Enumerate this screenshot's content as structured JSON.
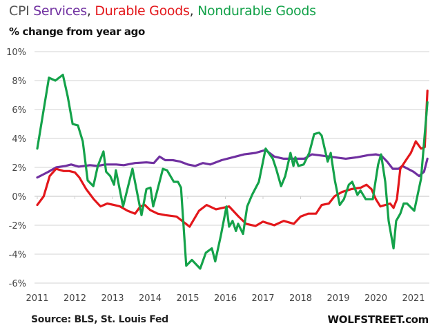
{
  "chart_data": {
    "type": "line",
    "title_parts": [
      {
        "text": "CPI ",
        "color": "#555555"
      },
      {
        "text": "Services",
        "color": "#7030a0"
      },
      {
        "text": ", ",
        "color": "#333333"
      },
      {
        "text": "Durable Goods",
        "color": "#e3171b"
      },
      {
        "text": ", ",
        "color": "#333333"
      },
      {
        "text": "Nondurable Goods",
        "color": "#14a24a"
      }
    ],
    "title": "CPI Services, Durable Goods, Nondurable Goods",
    "subtitle": "% change from year ago",
    "xlabel": "",
    "ylabel": "",
    "xlim": [
      2011,
      2021.55
    ],
    "ylim": [
      -6,
      10
    ],
    "yticks": [
      10,
      8,
      6,
      4,
      2,
      0,
      -2,
      -4,
      -6
    ],
    "ytick_labels": [
      "10%",
      "8%",
      "6%",
      "4%",
      "2%",
      "0%",
      "-2%",
      "-4%",
      "-6%"
    ],
    "xticks": [
      2011,
      2012,
      2013,
      2014,
      2015,
      2016,
      2017,
      2018,
      2019,
      2020,
      2021
    ],
    "xtick_labels": [
      "2011",
      "2012",
      "2013",
      "2014",
      "2015",
      "2016",
      "2017",
      "2018",
      "2019",
      "2020",
      "2021"
    ],
    "grid": true,
    "source": "Source: BLS, St. Louis Fed",
    "brand": "WOLFSTREET.com",
    "series": [
      {
        "name": "Services",
        "color": "#7030a0",
        "points": [
          [
            2011.0,
            1.3
          ],
          [
            2011.15,
            1.5
          ],
          [
            2011.3,
            1.7
          ],
          [
            2011.5,
            2.0
          ],
          [
            2011.75,
            2.1
          ],
          [
            2011.9,
            2.2
          ],
          [
            2012.1,
            2.05
          ],
          [
            2012.4,
            2.15
          ],
          [
            2012.6,
            2.1
          ],
          [
            2012.8,
            2.2
          ],
          [
            2013.1,
            2.2
          ],
          [
            2013.3,
            2.15
          ],
          [
            2013.6,
            2.3
          ],
          [
            2013.9,
            2.35
          ],
          [
            2014.1,
            2.3
          ],
          [
            2014.25,
            2.75
          ],
          [
            2014.4,
            2.5
          ],
          [
            2014.6,
            2.5
          ],
          [
            2014.8,
            2.4
          ],
          [
            2015.0,
            2.2
          ],
          [
            2015.2,
            2.1
          ],
          [
            2015.4,
            2.3
          ],
          [
            2015.6,
            2.2
          ],
          [
            2015.9,
            2.5
          ],
          [
            2016.2,
            2.7
          ],
          [
            2016.5,
            2.9
          ],
          [
            2016.8,
            3.0
          ],
          [
            2017.07,
            3.2
          ],
          [
            2017.3,
            2.75
          ],
          [
            2017.55,
            2.6
          ],
          [
            2017.9,
            2.6
          ],
          [
            2018.1,
            2.6
          ],
          [
            2018.3,
            2.9
          ],
          [
            2018.6,
            2.8
          ],
          [
            2018.9,
            2.7
          ],
          [
            2019.2,
            2.6
          ],
          [
            2019.5,
            2.7
          ],
          [
            2019.8,
            2.85
          ],
          [
            2020.0,
            2.9
          ],
          [
            2020.15,
            2.8
          ],
          [
            2020.3,
            2.4
          ],
          [
            2020.45,
            1.9
          ],
          [
            2020.6,
            1.9
          ],
          [
            2020.7,
            2.1
          ],
          [
            2020.85,
            1.9
          ],
          [
            2021.0,
            1.7
          ],
          [
            2021.15,
            1.4
          ],
          [
            2021.28,
            1.7
          ],
          [
            2021.37,
            2.6
          ]
        ]
      },
      {
        "name": "Durable Goods",
        "color": "#e3171b",
        "points": [
          [
            2011.0,
            -0.6
          ],
          [
            2011.17,
            0.0
          ],
          [
            2011.33,
            1.4
          ],
          [
            2011.5,
            1.9
          ],
          [
            2011.7,
            1.75
          ],
          [
            2011.85,
            1.75
          ],
          [
            2012.0,
            1.65
          ],
          [
            2012.12,
            1.3
          ],
          [
            2012.3,
            0.5
          ],
          [
            2012.5,
            -0.2
          ],
          [
            2012.68,
            -0.7
          ],
          [
            2012.86,
            -0.5
          ],
          [
            2013.04,
            -0.6
          ],
          [
            2013.2,
            -0.7
          ],
          [
            2013.4,
            -1.0
          ],
          [
            2013.6,
            -1.2
          ],
          [
            2013.74,
            -0.7
          ],
          [
            2013.86,
            -0.6
          ],
          [
            2014.0,
            -0.95
          ],
          [
            2014.2,
            -1.2
          ],
          [
            2014.4,
            -1.3
          ],
          [
            2014.7,
            -1.4
          ],
          [
            2014.95,
            -1.9
          ],
          [
            2015.05,
            -2.1
          ],
          [
            2015.3,
            -1.0
          ],
          [
            2015.5,
            -0.6
          ],
          [
            2015.75,
            -0.9
          ],
          [
            2016.1,
            -0.7
          ],
          [
            2016.35,
            -1.4
          ],
          [
            2016.55,
            -1.9
          ],
          [
            2016.8,
            -2.05
          ],
          [
            2017.0,
            -1.75
          ],
          [
            2017.3,
            -2.0
          ],
          [
            2017.55,
            -1.7
          ],
          [
            2017.82,
            -1.9
          ],
          [
            2018.0,
            -1.4
          ],
          [
            2018.2,
            -1.2
          ],
          [
            2018.41,
            -1.2
          ],
          [
            2018.56,
            -0.6
          ],
          [
            2018.75,
            -0.5
          ],
          [
            2018.9,
            0.0
          ],
          [
            2019.1,
            0.3
          ],
          [
            2019.35,
            0.5
          ],
          [
            2019.6,
            0.6
          ],
          [
            2019.75,
            0.8
          ],
          [
            2019.88,
            0.5
          ],
          [
            2020.0,
            -0.2
          ],
          [
            2020.12,
            -0.7
          ],
          [
            2020.25,
            -0.6
          ],
          [
            2020.38,
            -0.5
          ],
          [
            2020.47,
            -0.8
          ],
          [
            2020.56,
            -0.2
          ],
          [
            2020.65,
            1.9
          ],
          [
            2020.8,
            2.5
          ],
          [
            2020.93,
            3.0
          ],
          [
            2021.06,
            3.8
          ],
          [
            2021.2,
            3.3
          ],
          [
            2021.3,
            3.4
          ],
          [
            2021.37,
            7.3
          ]
        ]
      },
      {
        "name": "Nondurable Goods",
        "color": "#14a24a",
        "points": [
          [
            2011.0,
            3.3
          ],
          [
            2011.31,
            8.2
          ],
          [
            2011.48,
            8.0
          ],
          [
            2011.68,
            8.4
          ],
          [
            2011.81,
            6.9
          ],
          [
            2011.94,
            5.0
          ],
          [
            2012.08,
            4.9
          ],
          [
            2012.21,
            3.8
          ],
          [
            2012.34,
            1.1
          ],
          [
            2012.49,
            0.7
          ],
          [
            2012.61,
            2.1
          ],
          [
            2012.76,
            3.1
          ],
          [
            2012.83,
            1.7
          ],
          [
            2012.94,
            1.4
          ],
          [
            2013.04,
            0.8
          ],
          [
            2013.09,
            1.8
          ],
          [
            2013.28,
            -0.7
          ],
          [
            2013.53,
            1.9
          ],
          [
            2013.77,
            -1.3
          ],
          [
            2013.9,
            0.5
          ],
          [
            2014.01,
            0.6
          ],
          [
            2014.08,
            -0.7
          ],
          [
            2014.34,
            1.9
          ],
          [
            2014.45,
            1.8
          ],
          [
            2014.63,
            1.0
          ],
          [
            2014.74,
            1.0
          ],
          [
            2014.82,
            0.6
          ],
          [
            2014.96,
            -4.8
          ],
          [
            2015.11,
            -4.4
          ],
          [
            2015.33,
            -5.0
          ],
          [
            2015.48,
            -3.9
          ],
          [
            2015.64,
            -3.6
          ],
          [
            2015.73,
            -4.5
          ],
          [
            2015.88,
            -2.7
          ],
          [
            2016.03,
            -0.7
          ],
          [
            2016.1,
            -2.1
          ],
          [
            2016.19,
            -1.7
          ],
          [
            2016.28,
            -2.4
          ],
          [
            2016.34,
            -1.9
          ],
          [
            2016.47,
            -2.6
          ],
          [
            2016.58,
            -0.7
          ],
          [
            2016.71,
            0.1
          ],
          [
            2016.89,
            1.0
          ],
          [
            2017.07,
            3.3
          ],
          [
            2017.26,
            2.6
          ],
          [
            2017.35,
            1.9
          ],
          [
            2017.48,
            0.7
          ],
          [
            2017.59,
            1.4
          ],
          [
            2017.73,
            3.0
          ],
          [
            2017.81,
            2.1
          ],
          [
            2017.86,
            2.7
          ],
          [
            2017.94,
            2.1
          ],
          [
            2018.08,
            2.2
          ],
          [
            2018.23,
            3.0
          ],
          [
            2018.36,
            4.3
          ],
          [
            2018.49,
            4.4
          ],
          [
            2018.56,
            4.2
          ],
          [
            2018.72,
            2.4
          ],
          [
            2018.8,
            3.0
          ],
          [
            2018.91,
            1.1
          ],
          [
            2019.04,
            -0.6
          ],
          [
            2019.15,
            -0.2
          ],
          [
            2019.28,
            0.8
          ],
          [
            2019.37,
            1.0
          ],
          [
            2019.51,
            0.1
          ],
          [
            2019.59,
            0.4
          ],
          [
            2019.73,
            -0.2
          ],
          [
            2019.92,
            -0.2
          ],
          [
            2019.97,
            0.7
          ],
          [
            2020.06,
            2.2
          ],
          [
            2020.14,
            2.9
          ],
          [
            2020.25,
            1.0
          ],
          [
            2020.34,
            -1.7
          ],
          [
            2020.47,
            -3.6
          ],
          [
            2020.54,
            -1.7
          ],
          [
            2020.65,
            -1.2
          ],
          [
            2020.74,
            -0.5
          ],
          [
            2020.83,
            -0.5
          ],
          [
            2021.02,
            -1.0
          ],
          [
            2021.2,
            1.2
          ],
          [
            2021.29,
            4.0
          ],
          [
            2021.37,
            6.5
          ]
        ]
      }
    ]
  }
}
